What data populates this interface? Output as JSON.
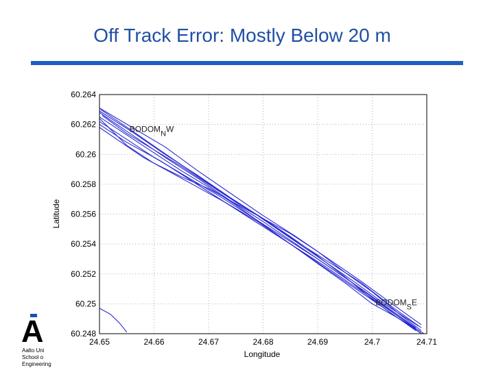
{
  "slide": {
    "title": "Off Track Error: Mostly Below 20 m"
  },
  "logo": {
    "line1": "Aalto Uni",
    "line2": "School o",
    "line3": "Engineering"
  },
  "chart_data": {
    "type": "line",
    "xlabel": "Longitude",
    "ylabel": "Latitude",
    "xlim": [
      24.65,
      24.71
    ],
    "ylim": [
      60.248,
      60.264
    ],
    "x_ticks": [
      "24.65",
      "24.66",
      "24.67",
      "24.68",
      "24.69",
      "24.7",
      "24.71"
    ],
    "y_ticks": [
      "60.248",
      "60.25",
      "60.252",
      "60.254",
      "60.256",
      "60.258",
      "60.26",
      "60.262",
      "60.264"
    ],
    "grid": true,
    "line_color": "#2a2ad0",
    "annotations": [
      {
        "text": "BODOM",
        "sub": "N",
        "suffix": "W",
        "x": 24.6555,
        "y": 60.2615
      },
      {
        "text": "BODOM",
        "sub": "S",
        "suffix": "E",
        "x": 24.7006,
        "y": 60.2499
      }
    ],
    "series": [
      {
        "values": [
          [
            24.65,
            60.2625
          ],
          [
            24.655,
            60.2613
          ],
          [
            24.66,
            60.2601
          ],
          [
            24.665,
            60.2589
          ],
          [
            24.67,
            60.2578
          ],
          [
            24.675,
            60.2566
          ],
          [
            24.68,
            60.2553
          ],
          [
            24.685,
            60.254
          ],
          [
            24.69,
            60.2527
          ],
          [
            24.695,
            60.2514
          ],
          [
            24.7,
            60.25
          ],
          [
            24.705,
            60.249
          ],
          [
            24.709,
            60.248
          ]
        ]
      },
      {
        "values": [
          [
            24.65,
            60.2628
          ],
          [
            24.656,
            60.2613
          ],
          [
            24.662,
            60.2598
          ],
          [
            24.668,
            60.2584
          ],
          [
            24.674,
            60.2569
          ],
          [
            24.68,
            60.2555
          ],
          [
            24.686,
            60.254
          ],
          [
            24.692,
            60.2525
          ],
          [
            24.698,
            60.251
          ],
          [
            24.703,
            60.2497
          ],
          [
            24.708,
            60.2484
          ]
        ]
      },
      {
        "values": [
          [
            24.65,
            60.2622
          ],
          [
            24.655,
            60.261
          ],
          [
            24.66,
            60.2598
          ],
          [
            24.666,
            60.2585
          ],
          [
            24.672,
            60.2572
          ],
          [
            24.678,
            60.2558
          ],
          [
            24.684,
            60.2544
          ],
          [
            24.69,
            60.253
          ],
          [
            24.696,
            60.2515
          ],
          [
            24.702,
            60.2499
          ],
          [
            24.708,
            60.2483
          ]
        ]
      },
      {
        "values": [
          [
            24.65,
            60.2631
          ],
          [
            24.656,
            60.2618
          ],
          [
            24.662,
            60.2605
          ],
          [
            24.668,
            60.2589
          ],
          [
            24.674,
            60.2574
          ],
          [
            24.68,
            60.2559
          ],
          [
            24.686,
            60.2545
          ],
          [
            24.692,
            60.253
          ],
          [
            24.698,
            60.2515
          ],
          [
            24.704,
            60.2499
          ],
          [
            24.709,
            60.2486
          ]
        ]
      },
      {
        "values": [
          [
            24.65,
            60.262
          ],
          [
            24.655,
            60.2608
          ],
          [
            24.661,
            60.2596
          ],
          [
            24.667,
            60.2582
          ],
          [
            24.673,
            60.2568
          ],
          [
            24.679,
            60.2554
          ],
          [
            24.685,
            60.254
          ],
          [
            24.691,
            60.2526
          ],
          [
            24.697,
            60.2511
          ],
          [
            24.703,
            60.2496
          ],
          [
            24.709,
            60.2481
          ]
        ]
      },
      {
        "values": [
          [
            24.65,
            60.2624
          ],
          [
            24.655,
            60.2606
          ],
          [
            24.66,
            60.2594
          ],
          [
            24.665,
            60.2585
          ],
          [
            24.67,
            60.2577
          ],
          [
            24.675,
            60.2567
          ],
          [
            24.68,
            60.2557
          ],
          [
            24.685,
            60.2547
          ],
          [
            24.69,
            60.2535
          ],
          [
            24.695,
            60.2521
          ],
          [
            24.7,
            60.2508
          ],
          [
            24.705,
            60.2493
          ],
          [
            24.709,
            60.2482
          ]
        ]
      },
      {
        "values": [
          [
            24.6505,
            60.2626
          ],
          [
            24.655,
            60.2614
          ],
          [
            24.66,
            60.2603
          ],
          [
            24.665,
            60.2592
          ],
          [
            24.67,
            60.258
          ],
          [
            24.675,
            60.2568
          ],
          [
            24.68,
            60.2557
          ],
          [
            24.685,
            60.2545
          ],
          [
            24.69,
            60.2532
          ],
          [
            24.695,
            60.2518
          ],
          [
            24.7,
            60.2503
          ],
          [
            24.704,
            60.2492
          ],
          [
            24.7095,
            60.248
          ]
        ]
      },
      {
        "values": [
          [
            24.65,
            60.2629
          ],
          [
            24.656,
            60.2615
          ],
          [
            24.662,
            60.26
          ],
          [
            24.668,
            60.2586
          ],
          [
            24.674,
            60.2571
          ],
          [
            24.68,
            60.2557
          ],
          [
            24.686,
            60.2542
          ],
          [
            24.692,
            60.2528
          ],
          [
            24.698,
            60.2514
          ],
          [
            24.704,
            60.2497
          ],
          [
            24.709,
            60.2484
          ]
        ]
      },
      {
        "values": [
          [
            24.65,
            60.2618
          ],
          [
            24.654,
            60.2608
          ],
          [
            24.658,
            60.2598
          ],
          [
            24.663,
            60.2588
          ],
          [
            24.668,
            60.2578
          ],
          [
            24.673,
            60.2568
          ],
          [
            24.679,
            60.2555
          ],
          [
            24.685,
            60.254
          ],
          [
            24.691,
            60.2525
          ],
          [
            24.697,
            60.251
          ],
          [
            24.703,
            60.2495
          ],
          [
            24.708,
            60.2482
          ]
        ]
      },
      {
        "values": [
          [
            24.6502,
            60.263
          ],
          [
            24.6555,
            60.2617
          ],
          [
            24.661,
            60.2603
          ],
          [
            24.667,
            60.2588
          ],
          [
            24.673,
            60.2573
          ],
          [
            24.679,
            60.2559
          ],
          [
            24.685,
            60.2544
          ],
          [
            24.691,
            60.2529
          ],
          [
            24.697,
            60.2514
          ],
          [
            24.703,
            60.2498
          ],
          [
            24.7085,
            60.2485
          ]
        ]
      },
      {
        "values": [
          [
            24.65,
            60.2497
          ],
          [
            24.652,
            60.2493
          ],
          [
            24.6537,
            60.2487
          ],
          [
            24.655,
            60.2481
          ]
        ]
      }
    ]
  }
}
